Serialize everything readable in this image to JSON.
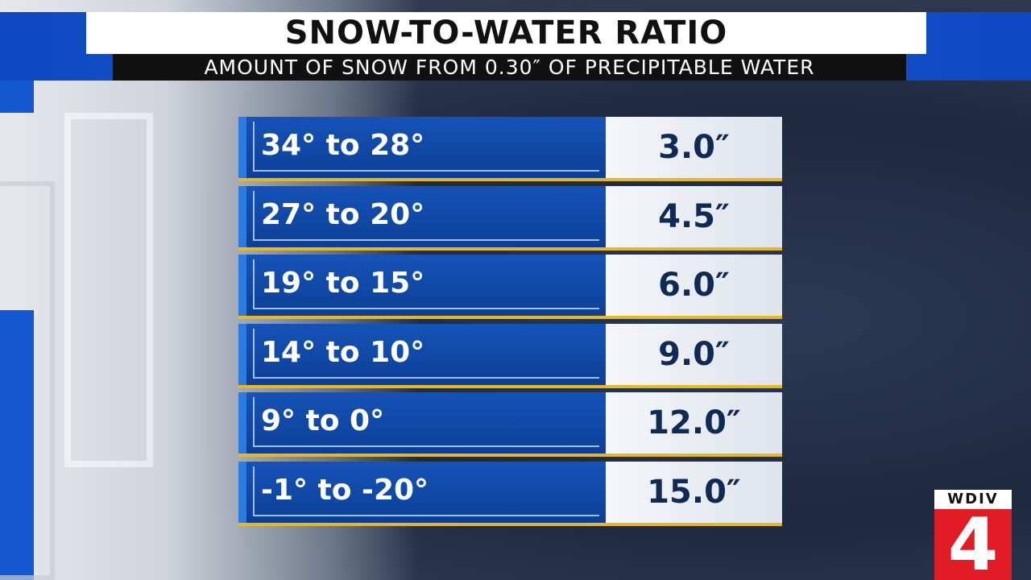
{
  "header": {
    "title": "SNOW-TO-WATER RATIO",
    "subtitle": "AMOUNT OF SNOW FROM 0.30″ OF PRECIPITABLE WATER"
  },
  "table": {
    "rows": [
      [
        "34° to 28°",
        "3.0″"
      ],
      [
        "27° to 20°",
        "4.5″"
      ],
      [
        "19° to 15°",
        "6.0″"
      ],
      [
        "14° to 10°",
        "9.0″"
      ],
      [
        "9° to 0°",
        "12.0″"
      ],
      [
        "-1° to -20°",
        "15.0″"
      ]
    ]
  },
  "logo": {
    "callsign": "WDIV",
    "channel": "4"
  }
}
